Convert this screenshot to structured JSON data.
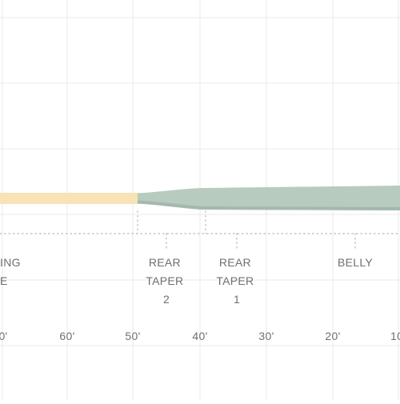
{
  "colors": {
    "running_line": "#f7e3b6",
    "head": "#b7cbbf",
    "head_shadow": "#a3b9ad",
    "grid": "#e9e9e9",
    "dotted": "#b9b9b9",
    "text": "#6f6f6f"
  },
  "sections": [
    {
      "id": "running",
      "lines": [
        "ING",
        "E"
      ]
    },
    {
      "id": "rear-taper-2",
      "lines": [
        "REAR",
        "TAPER",
        "2"
      ]
    },
    {
      "id": "rear-taper-1",
      "lines": [
        "REAR",
        "TAPER",
        "1"
      ]
    },
    {
      "id": "belly",
      "lines": [
        "BELLY"
      ]
    }
  ],
  "axis": {
    "ticks": [
      "0'",
      "60'",
      "50'",
      "40'",
      "30'",
      "20'",
      "10"
    ]
  }
}
